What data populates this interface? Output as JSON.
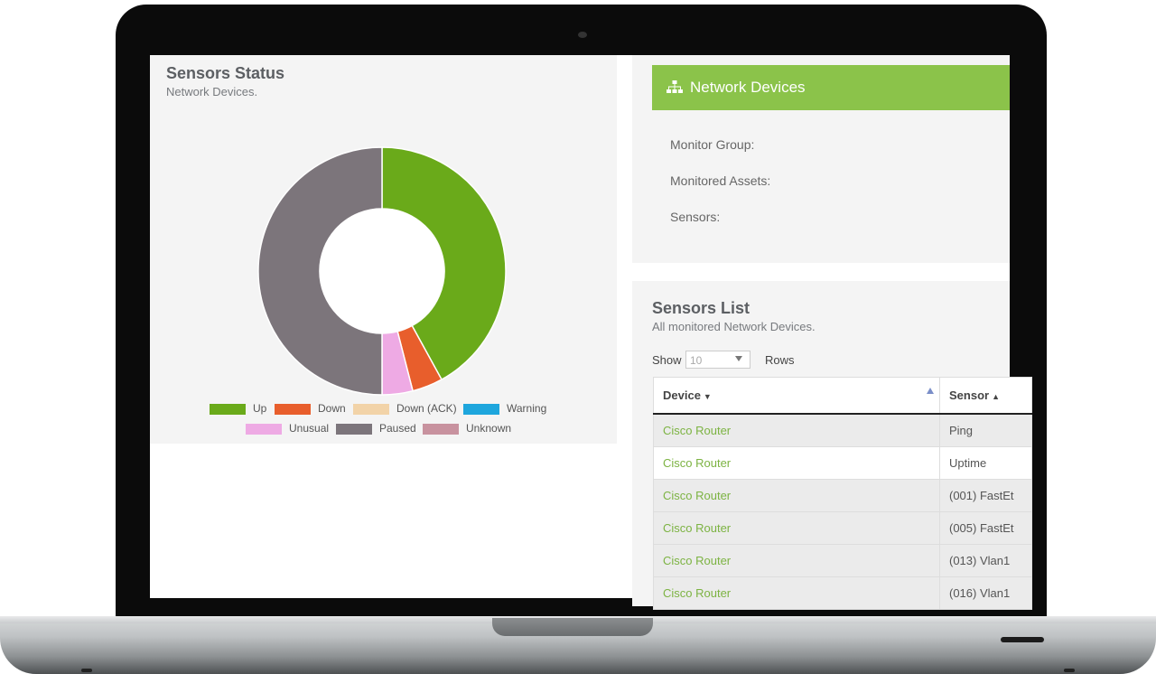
{
  "sensors_status": {
    "title": "Sensors Status",
    "subtitle": "Network Devices."
  },
  "chart_data": {
    "type": "pie",
    "variant": "donut",
    "categories": [
      "Up",
      "Down",
      "Down (ACK)",
      "Warning",
      "Unusual",
      "Paused",
      "Unknown"
    ],
    "values": [
      42,
      4,
      0,
      0,
      4,
      50,
      0
    ],
    "colors": [
      "#6aaa1a",
      "#e85e2c",
      "#f2d3a8",
      "#1ea6dd",
      "#eeaae4",
      "#7c757b",
      "#c8929f"
    ],
    "legend": [
      "Up",
      "Down",
      "Down (ACK)",
      "Warning",
      "Unusual",
      "Paused",
      "Unknown"
    ],
    "legend_position": "bottom"
  },
  "network_devices": {
    "title": "Network Devices",
    "icon": "sitemap-icon",
    "accent": "#8bc34a",
    "rows": [
      "Monitor Group:",
      "Monitored Assets:",
      "Sensors:"
    ]
  },
  "sensors_list": {
    "title": "Sensors List",
    "subtitle": "All monitored Network Devices.",
    "show_label": "Show",
    "rows_value": "10",
    "rows_label": "Rows",
    "columns": [
      "Device",
      "Sensor"
    ],
    "rows": [
      {
        "device": "Cisco Router",
        "sensor": "Ping"
      },
      {
        "device": "Cisco Router",
        "sensor": "Uptime"
      },
      {
        "device": "Cisco Router",
        "sensor": "(001) FastEt"
      },
      {
        "device": "Cisco Router",
        "sensor": "(005) FastEt"
      },
      {
        "device": "Cisco Router",
        "sensor": "(013) Vlan1"
      },
      {
        "device": "Cisco Router",
        "sensor": "(016) Vlan1"
      }
    ]
  }
}
